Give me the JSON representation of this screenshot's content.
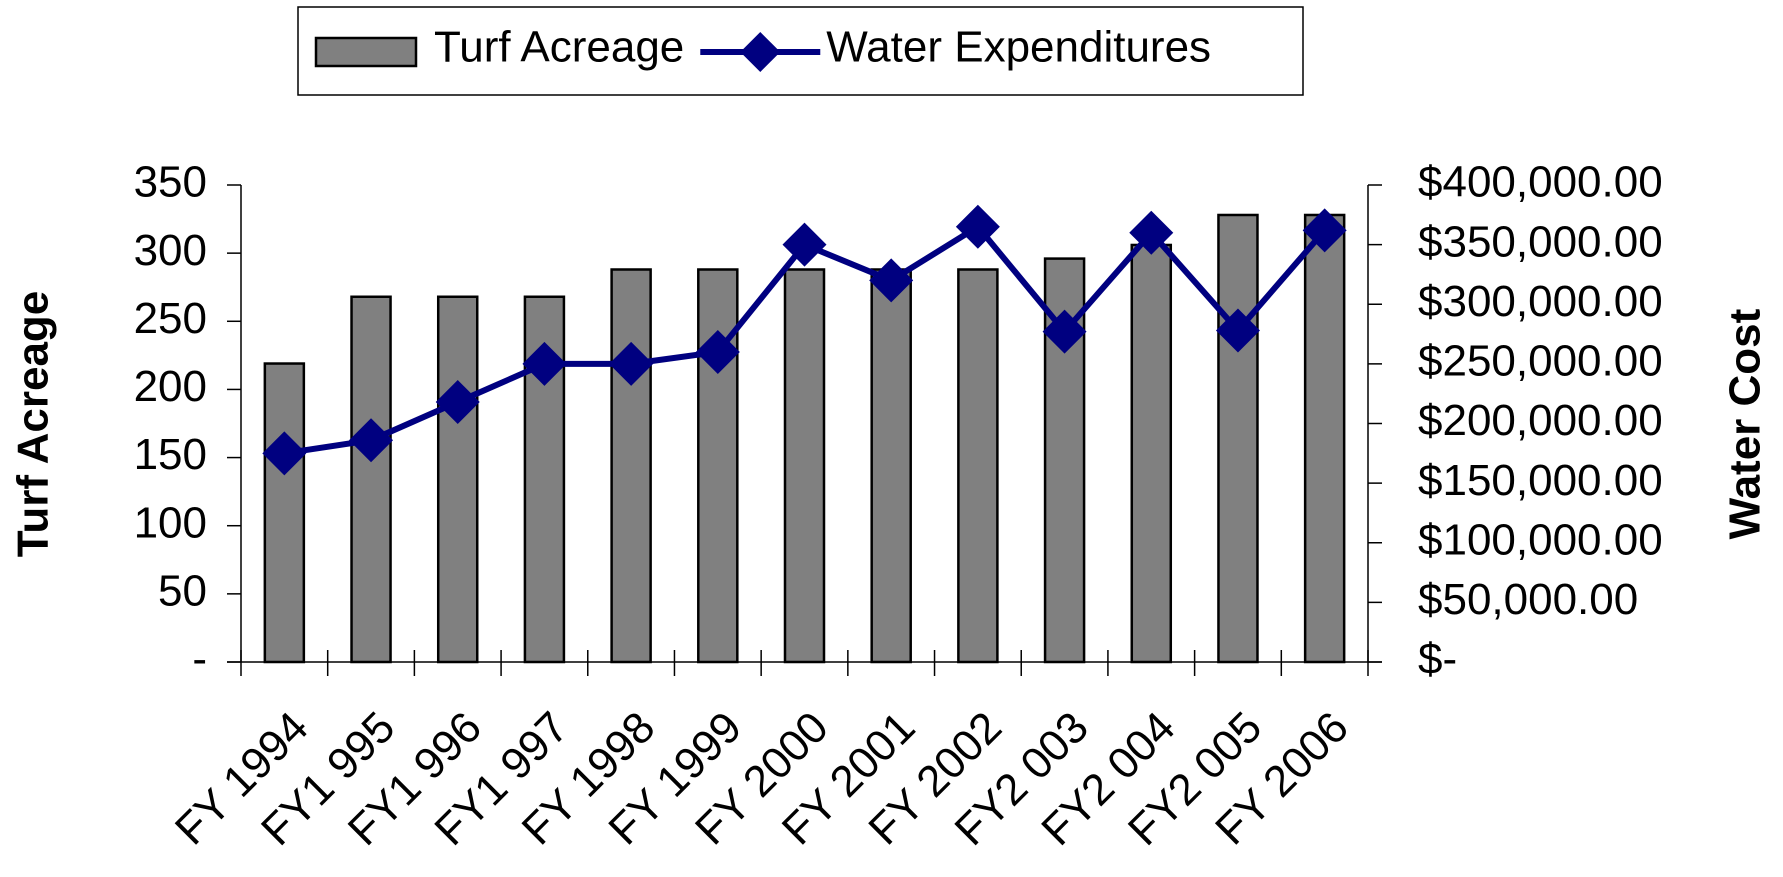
{
  "chart_data": {
    "type": "bar-line",
    "categories": [
      "FY 1994",
      "FY1 995",
      "FY1 996",
      "FY1 997",
      "FY 1998",
      "FY 1999",
      "FY 2000",
      "FY 2001",
      "FY 2002",
      "FY2 003",
      "FY2 004",
      "FY2 005",
      "FY 2006"
    ],
    "series": [
      {
        "name": "Turf Acreage",
        "type": "bar",
        "axis": "y",
        "color": "#808080",
        "values": [
          219,
          268,
          268,
          268,
          288,
          288,
          288,
          288,
          288,
          296,
          306,
          328,
          328
        ]
      },
      {
        "name": "Water Expenditures",
        "type": "line",
        "axis": "y2",
        "color": "#000080",
        "values": [
          175000,
          186000,
          218000,
          250000,
          250000,
          260000,
          350000,
          320000,
          365000,
          277000,
          360000,
          278000,
          362000
        ]
      }
    ],
    "ylabel": "Turf Acreage",
    "y2label": "Water Cost",
    "ylim": [
      0,
      350
    ],
    "yticks": [
      {
        "value": 0,
        "label": "-"
      },
      50,
      100,
      150,
      200,
      250,
      300,
      350
    ],
    "y2lim": [
      0,
      400000
    ],
    "y2ticks": [
      {
        "value": 0,
        "label": "$-"
      },
      {
        "value": 50000,
        "label": "$50,000.00"
      },
      {
        "value": 100000,
        "label": "$100,000.00"
      },
      {
        "value": 150000,
        "label": "$150,000.00"
      },
      {
        "value": 200000,
        "label": "$200,000.00"
      },
      {
        "value": 250000,
        "label": "$250,000.00"
      },
      {
        "value": 300000,
        "label": "$300,000.00"
      },
      {
        "value": 350000,
        "label": "$350,000.00"
      },
      {
        "value": 400000,
        "label": "$400,000.00"
      }
    ],
    "legend": "top"
  }
}
